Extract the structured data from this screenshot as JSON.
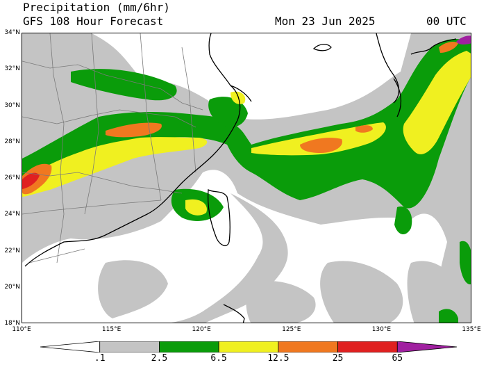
{
  "header": {
    "title": "Precipitation (mm/6hr)",
    "subtitle": "GFS 108 Hour Forecast",
    "date": "Mon 23 Jun 2025",
    "time": "00 UTC"
  },
  "map": {
    "lon_range": [
      110,
      135
    ],
    "lat_range": [
      18,
      34
    ],
    "lat_labels": [
      "34°N",
      "32°N",
      "30°N",
      "28°N",
      "26°N",
      "24°N",
      "22°N",
      "20°N",
      "18°N"
    ],
    "lon_labels": [
      "110°E",
      "115°E",
      "120°E",
      "125°E",
      "130°E",
      "135°E"
    ],
    "precip_colors": {
      "light": "#c4c4c4",
      "moderate": "#0a9c0a",
      "heavy": "#f0f020",
      "very_heavy": "#f07820",
      "extreme": "#e02020",
      "max": "#a020a0"
    }
  },
  "colorbar": {
    "labels": [
      ".1",
      "2.5",
      "6.5",
      "12.5",
      "25",
      "65"
    ],
    "colors": [
      "#ffffff",
      "#c4c4c4",
      "#0a9c0a",
      "#f0f020",
      "#f07820",
      "#e02020",
      "#a020a0"
    ]
  }
}
